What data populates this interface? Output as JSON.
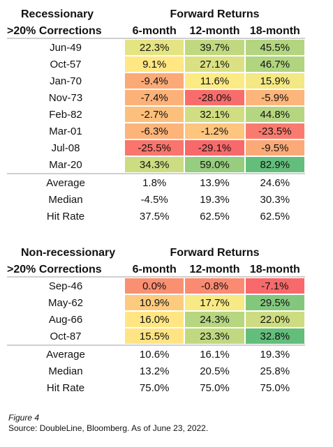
{
  "chart_data": [
    {
      "type": "table",
      "title_left": "Recessionary",
      "title_right": "Forward Returns",
      "row_header": ">20% Corrections",
      "columns": [
        "6-month",
        "12-month",
        "18-month"
      ],
      "rows": [
        {
          "label": "Jun-49",
          "values": [
            "22.3%",
            "39.7%",
            "45.5%"
          ],
          "numbers": [
            22.3,
            39.7,
            45.5
          ]
        },
        {
          "label": "Oct-57",
          "values": [
            "9.1%",
            "27.1%",
            "46.7%"
          ],
          "numbers": [
            9.1,
            27.1,
            46.7
          ]
        },
        {
          "label": "Jan-70",
          "values": [
            "-9.4%",
            "11.6%",
            "15.9%"
          ],
          "numbers": [
            -9.4,
            11.6,
            15.9
          ]
        },
        {
          "label": "Nov-73",
          "values": [
            "-7.4%",
            "-28.0%",
            "-5.9%"
          ],
          "numbers": [
            -7.4,
            -28.0,
            -5.9
          ]
        },
        {
          "label": "Feb-82",
          "values": [
            "-2.7%",
            "32.1%",
            "44.8%"
          ],
          "numbers": [
            -2.7,
            32.1,
            44.8
          ]
        },
        {
          "label": "Mar-01",
          "values": [
            "-6.3%",
            "-1.2%",
            "-23.5%"
          ],
          "numbers": [
            -6.3,
            -1.2,
            -23.5
          ]
        },
        {
          "label": "Jul-08",
          "values": [
            "-25.5%",
            "-29.1%",
            "-9.5%"
          ],
          "numbers": [
            -25.5,
            -29.1,
            -9.5
          ]
        },
        {
          "label": "Mar-20",
          "values": [
            "34.3%",
            "59.0%",
            "82.9%"
          ],
          "numbers": [
            34.3,
            59.0,
            82.9
          ]
        }
      ],
      "stats": [
        {
          "label": "Average",
          "values": [
            "1.8%",
            "13.9%",
            "24.6%"
          ]
        },
        {
          "label": "Median",
          "values": [
            "-4.5%",
            "19.3%",
            "30.3%"
          ]
        },
        {
          "label": "Hit Rate",
          "values": [
            "37.5%",
            "62.5%",
            "62.5%"
          ]
        }
      ]
    },
    {
      "type": "table",
      "title_left": "Non-recessionary",
      "title_right": "Forward Returns",
      "row_header": ">20% Corrections",
      "columns": [
        "6-month",
        "12-month",
        "18-month"
      ],
      "rows": [
        {
          "label": "Sep-46",
          "values": [
            "0.0%",
            "-0.8%",
            "-7.1%"
          ],
          "numbers": [
            0.0,
            -0.8,
            -7.1
          ]
        },
        {
          "label": "May-62",
          "values": [
            "10.9%",
            "17.7%",
            "29.5%"
          ],
          "numbers": [
            10.9,
            17.7,
            29.5
          ]
        },
        {
          "label": "Aug-66",
          "values": [
            "16.0%",
            "24.3%",
            "22.0%"
          ],
          "numbers": [
            16.0,
            24.3,
            22.0
          ]
        },
        {
          "label": "Oct-87",
          "values": [
            "15.5%",
            "23.3%",
            "32.8%"
          ],
          "numbers": [
            15.5,
            23.3,
            32.8
          ]
        }
      ],
      "stats": [
        {
          "label": "Average",
          "values": [
            "10.6%",
            "16.1%",
            "19.3%"
          ]
        },
        {
          "label": "Median",
          "values": [
            "13.2%",
            "20.5%",
            "25.8%"
          ]
        },
        {
          "label": "Hit Rate",
          "values": [
            "75.0%",
            "75.0%",
            "75.0%"
          ]
        }
      ]
    }
  ],
  "colors": {
    "strong_negative": "#f8696b",
    "neutral": "#ffeb84",
    "strong_positive": "#63be7b"
  },
  "caption": {
    "figure": "Figure 4",
    "source": "Source: DoubleLine, Bloomberg. As of June 23, 2022."
  }
}
